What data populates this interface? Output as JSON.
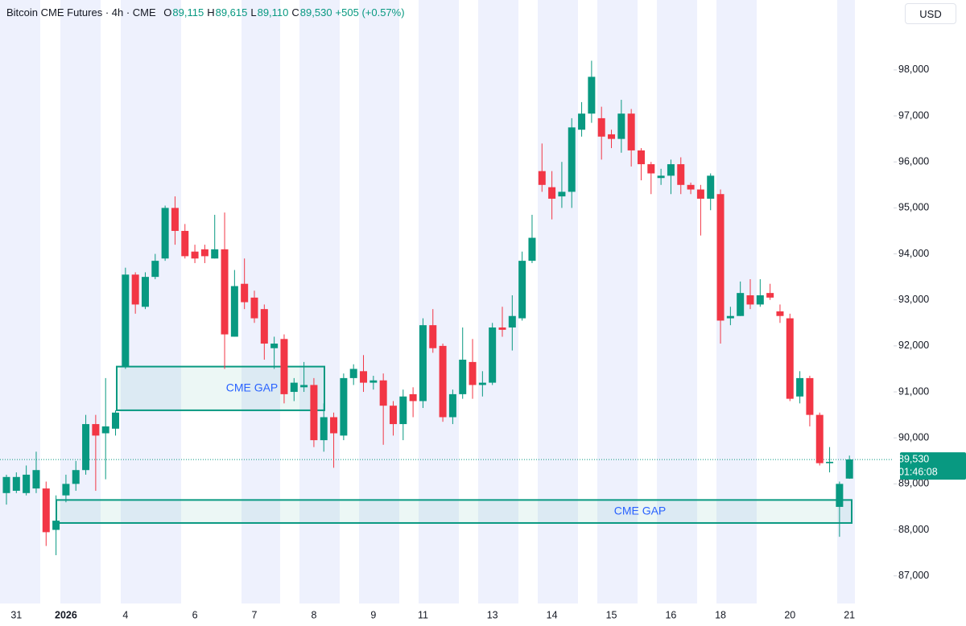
{
  "chart_data": {
    "type": "candlestick",
    "title": "Bitcoin CME Futures · 4h · CME",
    "header": [
      {
        "label": "O",
        "text": "89,115"
      },
      {
        "label": "H",
        "text": "89,615"
      },
      {
        "label": "L",
        "text": "89,110"
      },
      {
        "label": "C",
        "text": "89,530"
      }
    ],
    "change": "+505 (+0.57%)",
    "currency": "USD",
    "up_color": "#089981",
    "down_color": "#f23645",
    "categories": [
      null,
      "31",
      null,
      null,
      null,
      null,
      "2026",
      null,
      null,
      null,
      null,
      null,
      "4",
      null,
      null,
      null,
      null,
      null,
      null,
      "6",
      null,
      null,
      null,
      null,
      null,
      "7",
      null,
      null,
      null,
      null,
      null,
      "8",
      null,
      null,
      null,
      null,
      null,
      "9",
      null,
      null,
      null,
      null,
      "11",
      null,
      null,
      null,
      null,
      null,
      null,
      "13",
      null,
      null,
      null,
      null,
      null,
      "14",
      null,
      null,
      null,
      null,
      null,
      "15",
      null,
      null,
      null,
      null,
      null,
      "16",
      null,
      null,
      null,
      null,
      "18",
      null,
      null,
      null,
      null,
      null,
      null,
      "20",
      null,
      null,
      null,
      null,
      null,
      "21"
    ],
    "open": [
      88800,
      88850,
      88800,
      88900,
      88900,
      88000,
      88750,
      89000,
      89300,
      90300,
      90100,
      90200,
      91550,
      93550,
      92850,
      93500,
      93900,
      95000,
      94500,
      94050,
      94100,
      93900,
      94100,
      92200,
      93350,
      93050,
      92800,
      91950,
      92150,
      91000,
      91100,
      91150,
      89950,
      90450,
      90050,
      91300,
      91450,
      91200,
      91250,
      90700,
      90300,
      90950,
      90800,
      92450,
      92000,
      90450,
      90950,
      91650,
      91150,
      91200,
      92400,
      92400,
      92600,
      93850,
      95800,
      95450,
      95250,
      95350,
      96700,
      97050,
      96950,
      96600,
      96500,
      97050,
      96250,
      95950,
      95650,
      95700,
      95950,
      95500,
      95400,
      95200,
      95300,
      92600,
      92650,
      93100,
      92900,
      93150,
      92750,
      92600,
      90900,
      91300,
      90500,
      89450,
      88500,
      89115
    ],
    "high": [
      89200,
      89250,
      89400,
      89700,
      89050,
      88750,
      89200,
      89500,
      90500,
      90500,
      91300,
      90600,
      93700,
      93600,
      93600,
      94000,
      95050,
      95250,
      94650,
      94200,
      94200,
      94850,
      94900,
      93650,
      93900,
      93200,
      92900,
      92200,
      92250,
      91300,
      91650,
      91300,
      90750,
      90550,
      91400,
      91600,
      91800,
      91350,
      91400,
      90800,
      91050,
      91100,
      92600,
      92800,
      92050,
      91050,
      92400,
      92150,
      91450,
      92500,
      92850,
      93100,
      94050,
      94850,
      96400,
      95800,
      96000,
      96950,
      97300,
      98200,
      97200,
      96700,
      97350,
      97150,
      96300,
      96000,
      95850,
      96050,
      96100,
      95550,
      95500,
      95750,
      95400,
      92850,
      93400,
      93450,
      93450,
      93350,
      92900,
      92700,
      91450,
      91350,
      90550,
      89800,
      89050,
      89615
    ],
    "low": [
      88550,
      88800,
      88750,
      88800,
      87650,
      87450,
      88600,
      88850,
      89200,
      88850,
      89100,
      90050,
      91500,
      92700,
      92800,
      93450,
      93850,
      94200,
      93900,
      93800,
      93800,
      93900,
      91500,
      92200,
      92800,
      92500,
      91700,
      91500,
      90750,
      90800,
      91000,
      89800,
      89700,
      89350,
      89950,
      91150,
      91000,
      91050,
      89850,
      90050,
      89950,
      90450,
      90650,
      91850,
      90350,
      90300,
      90850,
      90850,
      90900,
      91150,
      92200,
      91900,
      92550,
      93800,
      95350,
      94750,
      95000,
      95000,
      96550,
      96850,
      96050,
      96300,
      96200,
      95900,
      95600,
      95300,
      95500,
      95300,
      95300,
      95300,
      94400,
      94950,
      92050,
      92450,
      92650,
      92800,
      92850,
      93000,
      92500,
      90800,
      90750,
      90250,
      89400,
      89250,
      87850,
      89110
    ],
    "close": [
      89150,
      89150,
      89200,
      89300,
      87950,
      88200,
      89000,
      89300,
      90300,
      90050,
      90250,
      90550,
      93550,
      92900,
      93500,
      93850,
      95000,
      94500,
      93950,
      93900,
      93950,
      94100,
      92250,
      93300,
      92950,
      92600,
      92050,
      92050,
      90950,
      91200,
      91150,
      89950,
      90450,
      90100,
      91300,
      91500,
      91200,
      91250,
      90700,
      90300,
      90900,
      90800,
      92450,
      91950,
      90450,
      90950,
      91700,
      91150,
      91200,
      92400,
      92350,
      92650,
      93850,
      94350,
      95500,
      95200,
      95350,
      96750,
      97050,
      97850,
      96550,
      96500,
      97050,
      96250,
      95950,
      95750,
      95700,
      95950,
      95500,
      95400,
      95200,
      95700,
      92550,
      92650,
      93150,
      92900,
      93100,
      93050,
      92650,
      90850,
      91300,
      90500,
      89450,
      89480,
      89000,
      89530
    ],
    "ylim": [
      86400,
      99520
    ],
    "yticks": [
      {
        "value": 87000,
        "label": "87,000"
      },
      {
        "value": 88000,
        "label": "88,000"
      },
      {
        "value": 89000,
        "label": "89,000"
      },
      {
        "value": 90000,
        "label": "90,000"
      },
      {
        "value": 91000,
        "label": "91,000"
      },
      {
        "value": 92000,
        "label": "92,000"
      },
      {
        "value": 93000,
        "label": "93,000"
      },
      {
        "value": 94000,
        "label": "94,000"
      },
      {
        "value": 95000,
        "label": "95,000"
      },
      {
        "value": 96000,
        "label": "96,000"
      },
      {
        "value": 97000,
        "label": "97,000"
      },
      {
        "value": 98000,
        "label": "98,000"
      }
    ],
    "last_price": {
      "value": 89530,
      "label": "89,530",
      "countdown": "01:46:08"
    },
    "annotations": [
      {
        "text": "CME GAP",
        "top": 91550,
        "bottom": 90600
      },
      {
        "text": "CME GAP",
        "top": 88650,
        "bottom": 88150
      }
    ]
  }
}
